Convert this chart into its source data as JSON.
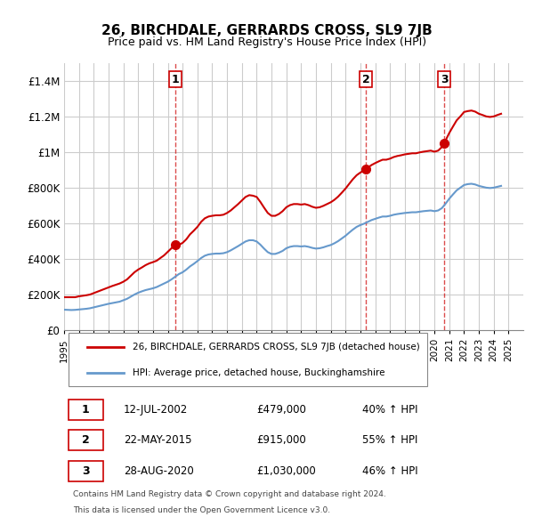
{
  "title": "26, BIRCHDALE, GERRARDS CROSS, SL9 7JB",
  "subtitle": "Price paid vs. HM Land Registry's House Price Index (HPI)",
  "legend_label_red": "26, BIRCHDALE, GERRARDS CROSS, SL9 7JB (detached house)",
  "legend_label_blue": "HPI: Average price, detached house, Buckinghamshire",
  "footer1": "Contains HM Land Registry data © Crown copyright and database right 2024.",
  "footer2": "This data is licensed under the Open Government Licence v3.0.",
  "transactions": [
    {
      "num": 1,
      "date": "12-JUL-2002",
      "price": "£479,000",
      "hpi": "40% ↑ HPI",
      "year": 2002.53
    },
    {
      "num": 2,
      "date": "22-MAY-2015",
      "price": "£915,000",
      "hpi": "55% ↑ HPI",
      "year": 2015.38
    },
    {
      "num": 3,
      "date": "28-AUG-2020",
      "price": "£1,030,000",
      "hpi": "46% ↑ HPI",
      "year": 2020.66
    }
  ],
  "ylim": [
    0,
    1500000
  ],
  "yticks": [
    0,
    200000,
    400000,
    600000,
    800000,
    1000000,
    1200000,
    1400000
  ],
  "ytick_labels": [
    "£0",
    "£200K",
    "£400K",
    "£600K",
    "£800K",
    "£1M",
    "£1.2M",
    "£1.4M"
  ],
  "xmin": 1995.0,
  "xmax": 2026.0,
  "red_color": "#cc0000",
  "blue_color": "#6699cc",
  "dashed_color": "#cc0000",
  "background_color": "#ffffff",
  "grid_color": "#cccccc",
  "hpi_data": {
    "years": [
      1995.0,
      1995.25,
      1995.5,
      1995.75,
      1996.0,
      1996.25,
      1996.5,
      1996.75,
      1997.0,
      1997.25,
      1997.5,
      1997.75,
      1998.0,
      1998.25,
      1998.5,
      1998.75,
      1999.0,
      1999.25,
      1999.5,
      1999.75,
      2000.0,
      2000.25,
      2000.5,
      2000.75,
      2001.0,
      2001.25,
      2001.5,
      2001.75,
      2002.0,
      2002.25,
      2002.5,
      2002.75,
      2003.0,
      2003.25,
      2003.5,
      2003.75,
      2004.0,
      2004.25,
      2004.5,
      2004.75,
      2005.0,
      2005.25,
      2005.5,
      2005.75,
      2006.0,
      2006.25,
      2006.5,
      2006.75,
      2007.0,
      2007.25,
      2007.5,
      2007.75,
      2008.0,
      2008.25,
      2008.5,
      2008.75,
      2009.0,
      2009.25,
      2009.5,
      2009.75,
      2010.0,
      2010.25,
      2010.5,
      2010.75,
      2011.0,
      2011.25,
      2011.5,
      2011.75,
      2012.0,
      2012.25,
      2012.5,
      2012.75,
      2013.0,
      2013.25,
      2013.5,
      2013.75,
      2014.0,
      2014.25,
      2014.5,
      2014.75,
      2015.0,
      2015.25,
      2015.5,
      2015.75,
      2016.0,
      2016.25,
      2016.5,
      2016.75,
      2017.0,
      2017.25,
      2017.5,
      2017.75,
      2018.0,
      2018.25,
      2018.5,
      2018.75,
      2019.0,
      2019.25,
      2019.5,
      2019.75,
      2020.0,
      2020.25,
      2020.5,
      2020.75,
      2021.0,
      2021.25,
      2021.5,
      2021.75,
      2022.0,
      2022.25,
      2022.5,
      2022.75,
      2023.0,
      2023.25,
      2023.5,
      2023.75,
      2024.0,
      2024.25,
      2024.5
    ],
    "values": [
      115000,
      114000,
      113000,
      114000,
      116000,
      118000,
      120000,
      123000,
      128000,
      133000,
      138000,
      143000,
      148000,
      152000,
      156000,
      160000,
      168000,
      176000,
      188000,
      200000,
      210000,
      218000,
      225000,
      230000,
      235000,
      242000,
      252000,
      262000,
      272000,
      285000,
      300000,
      315000,
      325000,
      340000,
      358000,
      372000,
      388000,
      405000,
      418000,
      425000,
      428000,
      430000,
      430000,
      432000,
      438000,
      448000,
      460000,
      472000,
      485000,
      498000,
      505000,
      505000,
      498000,
      480000,
      458000,
      438000,
      428000,
      428000,
      435000,
      445000,
      460000,
      468000,
      472000,
      472000,
      470000,
      472000,
      468000,
      462000,
      458000,
      460000,
      465000,
      472000,
      478000,
      488000,
      500000,
      515000,
      530000,
      548000,
      565000,
      580000,
      590000,
      598000,
      608000,
      618000,
      625000,
      632000,
      638000,
      638000,
      642000,
      648000,
      652000,
      655000,
      658000,
      660000,
      662000,
      662000,
      665000,
      668000,
      670000,
      672000,
      668000,
      672000,
      685000,
      710000,
      738000,
      762000,
      785000,
      800000,
      815000,
      820000,
      822000,
      818000,
      810000,
      805000,
      800000,
      798000,
      800000,
      805000,
      810000
    ]
  },
  "price_data": {
    "years": [
      1995.0,
      1995.25,
      1995.5,
      1995.75,
      1996.0,
      1996.25,
      1996.5,
      1996.75,
      1997.0,
      1997.25,
      1997.5,
      1997.75,
      1998.0,
      1998.25,
      1998.5,
      1998.75,
      1999.0,
      1999.25,
      1999.5,
      1999.75,
      2000.0,
      2000.25,
      2000.5,
      2000.75,
      2001.0,
      2001.25,
      2001.5,
      2001.75,
      2002.0,
      2002.25,
      2002.5,
      2002.75,
      2003.0,
      2003.25,
      2003.5,
      2003.75,
      2004.0,
      2004.25,
      2004.5,
      2004.75,
      2005.0,
      2005.25,
      2005.5,
      2005.75,
      2006.0,
      2006.25,
      2006.5,
      2006.75,
      2007.0,
      2007.25,
      2007.5,
      2007.75,
      2008.0,
      2008.25,
      2008.5,
      2008.75,
      2009.0,
      2009.25,
      2009.5,
      2009.75,
      2010.0,
      2010.25,
      2010.5,
      2010.75,
      2011.0,
      2011.25,
      2011.5,
      2011.75,
      2012.0,
      2012.25,
      2012.5,
      2012.75,
      2013.0,
      2013.25,
      2013.5,
      2013.75,
      2014.0,
      2014.25,
      2014.5,
      2014.75,
      2015.0,
      2015.25,
      2015.5,
      2015.75,
      2016.0,
      2016.25,
      2016.5,
      2016.75,
      2017.0,
      2017.25,
      2017.5,
      2017.75,
      2018.0,
      2018.25,
      2018.5,
      2018.75,
      2019.0,
      2019.25,
      2019.5,
      2019.75,
      2020.0,
      2020.25,
      2020.5,
      2020.75,
      2021.0,
      2021.25,
      2021.5,
      2021.75,
      2022.0,
      2022.25,
      2022.5,
      2022.75,
      2023.0,
      2023.25,
      2023.5,
      2023.75,
      2024.0,
      2024.25,
      2024.5
    ],
    "values": [
      185000,
      185000,
      185000,
      185000,
      190000,
      193000,
      196000,
      200000,
      208000,
      216000,
      224000,
      232000,
      240000,
      248000,
      255000,
      262000,
      272000,
      285000,
      305000,
      325000,
      340000,
      352000,
      365000,
      375000,
      382000,
      390000,
      405000,
      420000,
      440000,
      460000,
      479000,
      479000,
      490000,
      510000,
      538000,
      558000,
      580000,
      608000,
      628000,
      638000,
      642000,
      645000,
      645000,
      648000,
      658000,
      672000,
      690000,
      708000,
      728000,
      748000,
      758000,
      755000,
      748000,
      720000,
      688000,
      658000,
      642000,
      642000,
      652000,
      668000,
      690000,
      702000,
      708000,
      708000,
      705000,
      708000,
      702000,
      693000,
      687000,
      690000,
      698000,
      708000,
      718000,
      732000,
      750000,
      772000,
      795000,
      822000,
      848000,
      870000,
      885000,
      897000,
      912000,
      927000,
      938000,
      948000,
      957000,
      957000,
      963000,
      972000,
      978000,
      982000,
      987000,
      990000,
      993000,
      993000,
      998000,
      1002000,
      1005000,
      1008000,
      1002000,
      1008000,
      1028000,
      1065000,
      1107000,
      1143000,
      1178000,
      1200000,
      1225000,
      1230000,
      1233000,
      1227000,
      1215000,
      1208000,
      1200000,
      1197000,
      1200000,
      1208000,
      1215000
    ]
  }
}
